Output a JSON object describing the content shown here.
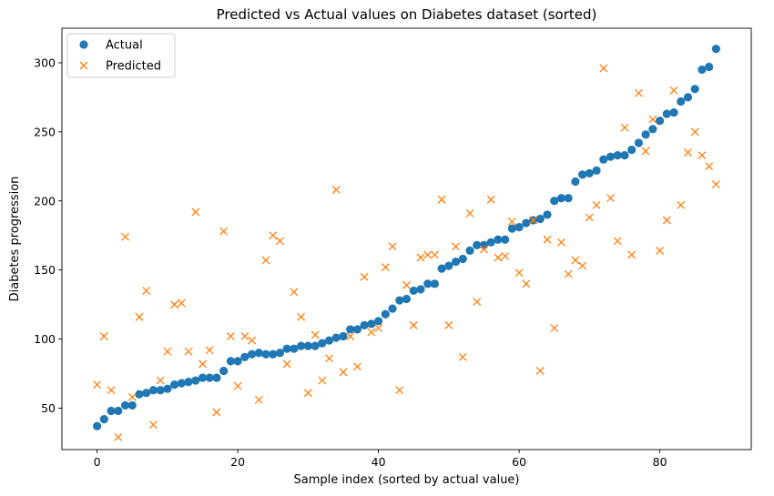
{
  "chart_data": {
    "type": "scatter",
    "title": "Predicted vs Actual values on Diabetes dataset (sorted)",
    "xlabel": "Sample index (sorted by actual value)",
    "ylabel": "Diabetes progression",
    "xlim": [
      -5,
      93
    ],
    "ylim": [
      20,
      325
    ],
    "xticks": [
      0,
      20,
      40,
      60,
      80
    ],
    "yticks": [
      50,
      100,
      150,
      200,
      250,
      300
    ],
    "legend_position": "upper-left",
    "grid": false,
    "x": [
      0,
      1,
      2,
      3,
      4,
      5,
      6,
      7,
      8,
      9,
      10,
      11,
      12,
      13,
      14,
      15,
      16,
      17,
      18,
      19,
      20,
      21,
      22,
      23,
      24,
      25,
      26,
      27,
      28,
      29,
      30,
      31,
      32,
      33,
      34,
      35,
      36,
      37,
      38,
      39,
      40,
      41,
      42,
      43,
      44,
      45,
      46,
      47,
      48,
      49,
      50,
      51,
      52,
      53,
      54,
      55,
      56,
      57,
      58,
      59,
      60,
      61,
      62,
      63,
      64,
      65,
      66,
      67,
      68,
      69,
      70,
      71,
      72,
      73,
      74,
      75,
      76,
      77,
      78,
      79,
      80,
      81,
      82,
      83,
      84,
      85,
      86,
      87,
      88
    ],
    "series": [
      {
        "name": "Actual",
        "marker": "circle",
        "color": "#1f77b4",
        "values": [
          37,
          42,
          48,
          48,
          52,
          52,
          60,
          61,
          63,
          63,
          64,
          67,
          68,
          69,
          70,
          72,
          72,
          72,
          77,
          84,
          84,
          87,
          89,
          90,
          89,
          89,
          90,
          93,
          93,
          95,
          95,
          95,
          97,
          99,
          101,
          102,
          107,
          107,
          110,
          111,
          113,
          118,
          122,
          128,
          129,
          135,
          136,
          140,
          140,
          151,
          153,
          156,
          158,
          164,
          168,
          168,
          170,
          172,
          172,
          180,
          181,
          184,
          186,
          187,
          190,
          200,
          202,
          202,
          214,
          219,
          220,
          222,
          230,
          232,
          233,
          233,
          237,
          242,
          248,
          252,
          258,
          263,
          264,
          272,
          275,
          281,
          295,
          297,
          310
        ]
      },
      {
        "name": "Predicted",
        "marker": "x",
        "color": "#ff7f0e",
        "values": [
          67,
          102,
          63,
          29,
          174,
          58,
          116,
          135,
          38,
          70,
          91,
          125,
          126,
          91,
          192,
          82,
          92,
          47,
          178,
          102,
          66,
          102,
          99,
          56,
          157,
          175,
          171,
          82,
          134,
          116,
          61,
          103,
          70,
          86,
          208,
          76,
          102,
          80,
          145,
          105,
          108,
          152,
          167,
          63,
          139,
          110,
          159,
          161,
          161,
          201,
          110,
          167,
          87,
          191,
          127,
          165,
          201,
          159,
          160,
          185,
          148,
          140,
          186,
          77,
          172,
          108,
          170,
          147,
          157,
          153,
          188,
          197,
          296,
          202,
          171,
          253,
          161,
          278,
          236,
          259,
          164,
          186,
          280,
          197,
          235,
          250,
          233,
          225,
          212
        ]
      }
    ]
  }
}
